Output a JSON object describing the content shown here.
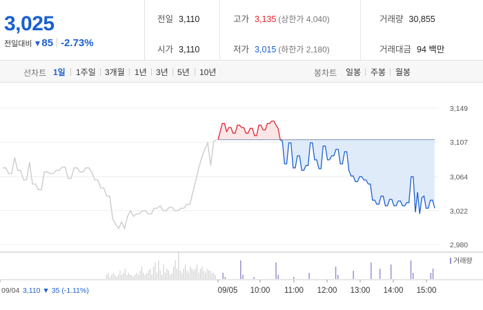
{
  "summary": {
    "price": "3,025",
    "change_label": "전일대비",
    "change_arrow": "▼",
    "change_amount": "85",
    "change_pct": "-2.73%",
    "prev_close": {
      "label": "전일",
      "value": "3,110"
    },
    "open": {
      "label": "시가",
      "value": "3,110"
    },
    "high": {
      "label": "고가",
      "value": "3,135",
      "sub": "(상한가 4,040)"
    },
    "low": {
      "label": "저가",
      "value": "3,015",
      "sub": "(하한가 2,180)"
    },
    "volume": {
      "label": "거래량",
      "value": "30,855"
    },
    "amount": {
      "label": "거래대금",
      "value": "94 백만"
    }
  },
  "toolbar": {
    "line_label": "선차트",
    "line_ranges": [
      "1일",
      "1주일",
      "3개월",
      "1년",
      "3년",
      "5년",
      "10년"
    ],
    "active_range": "1일",
    "candle_label": "봉차트",
    "candle_ranges": [
      "일봉",
      "주봉",
      "월봉"
    ]
  },
  "colors": {
    "up": "#e0222b",
    "down": "#1a5fd0",
    "prev_day_line": "#c8c8c8",
    "up_fill": "#fbe3e4",
    "down_fill": "#dde9fa",
    "volume_bar": "#9d8ccf"
  },
  "chart_data": {
    "type": "line",
    "ylim": [
      2980,
      3149
    ],
    "yticks": [
      3149,
      3107,
      3064,
      3022,
      2980
    ],
    "reference_price": 3110,
    "volume_legend": "거래량",
    "x_labels": [
      "09/05",
      "10:00",
      "11:00",
      "12:00",
      "13:00",
      "14:00",
      "15:00"
    ],
    "prev_day": {
      "label": "09/04",
      "close": "3,110",
      "change_arrow": "▼",
      "change": "35",
      "change_pct": "(-1.11%)",
      "prices": [
        3075,
        3075,
        3068,
        3068,
        3088,
        3072,
        3072,
        3060,
        3060,
        3082,
        3055,
        3055,
        3048,
        3048,
        3070,
        3070,
        3068,
        3068,
        3072,
        3072,
        3076,
        3076,
        3062,
        3062,
        3075,
        3075,
        3070,
        3070,
        3075,
        3075,
        3070,
        3060,
        3060,
        3050,
        3050,
        3040,
        3040,
        3012,
        3005,
        3000,
        3008,
        3000,
        3015,
        3022,
        3015,
        3018,
        3018,
        3022,
        3022,
        3018,
        3018,
        3025,
        3025,
        3028,
        3022,
        3022,
        3026,
        3026,
        3022,
        3022,
        3025,
        3025,
        3030,
        3030,
        3045,
        3060,
        3075,
        3088,
        3098,
        3106,
        3078,
        3108,
        3110
      ]
    },
    "today": {
      "prices": [
        3110,
        3120,
        3130,
        3130,
        3120,
        3125,
        3125,
        3118,
        3118,
        3128,
        3128,
        3125,
        3125,
        3118,
        3118,
        3124,
        3124,
        3115,
        3115,
        3128,
        3128,
        3122,
        3122,
        3130,
        3130,
        3133,
        3133,
        3128,
        3124,
        3110,
        3108,
        3080,
        3080,
        3106,
        3106,
        3075,
        3075,
        3090,
        3090,
        3072,
        3072,
        3078,
        3078,
        3106,
        3106,
        3085,
        3085,
        3074,
        3074,
        3102,
        3102,
        3085,
        3085,
        3090,
        3090,
        3098,
        3098,
        3080,
        3080,
        3095,
        3095,
        3072,
        3065,
        3065,
        3058,
        3058,
        3064,
        3064,
        3060,
        3060,
        3055,
        3055,
        3035,
        3035,
        3030,
        3030,
        3040,
        3040,
        3028,
        3028,
        3036,
        3036,
        3028,
        3028,
        3034,
        3034,
        3028,
        3028,
        3032,
        3032,
        3064,
        3064,
        3020,
        3045,
        3018,
        3038,
        3040,
        3025,
        3025,
        3035,
        3035,
        3025
      ]
    },
    "prev_volume": [
      2,
      3,
      1,
      2,
      3,
      2,
      1,
      2,
      4,
      2,
      3,
      5,
      2,
      3,
      2,
      2,
      1,
      2,
      3,
      2,
      4,
      6,
      3,
      2,
      3,
      4,
      5,
      2,
      6,
      8,
      3,
      9,
      4,
      2,
      7,
      3,
      5,
      4,
      2,
      3,
      6,
      9,
      5,
      13,
      4,
      3,
      5,
      7,
      4,
      3,
      6,
      5,
      4,
      5,
      7,
      3,
      5,
      6,
      4,
      3,
      5,
      4,
      4,
      3,
      3,
      2
    ],
    "today_volume": [
      0,
      0,
      3,
      1,
      0,
      0,
      0,
      0,
      0,
      0,
      9,
      2,
      0,
      0,
      0,
      0,
      1,
      0,
      0,
      0,
      0,
      0,
      0,
      0,
      0,
      0,
      8,
      2,
      0,
      0,
      0,
      0,
      0,
      0,
      1,
      0,
      0,
      0,
      0,
      0,
      0,
      3,
      0,
      0,
      0,
      0,
      0,
      0,
      0,
      0,
      0,
      0,
      0,
      6,
      2,
      0,
      0,
      0,
      0,
      0,
      0,
      4,
      0,
      0,
      0,
      0,
      0,
      0,
      0,
      8,
      0,
      0,
      0,
      5,
      0,
      0,
      0,
      0,
      7,
      0,
      0,
      0,
      0,
      0,
      0,
      0,
      0,
      9,
      3,
      0,
      0,
      0,
      0,
      0,
      0,
      0,
      3,
      5
    ]
  }
}
